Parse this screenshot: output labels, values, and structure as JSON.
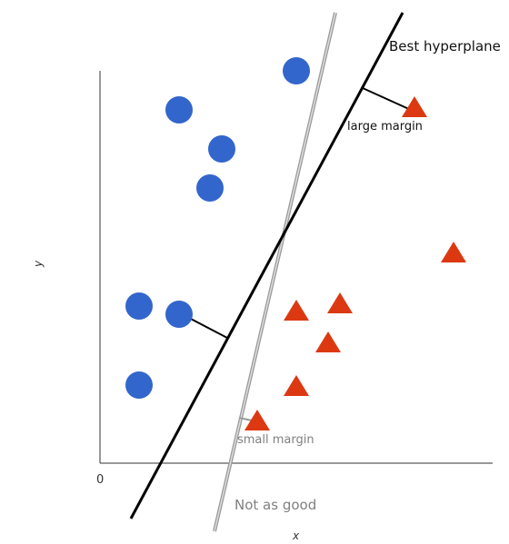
{
  "labels": {
    "best_hyperplane": "Best hyperplane",
    "large_margin": "large margin",
    "small_margin": "small margin",
    "not_as_good": "Not as good",
    "x_axis": "x",
    "y_axis": "y",
    "origin": "0"
  },
  "colors": {
    "circle": "#3366cc",
    "triangle": "#dc3912",
    "best_line": "#000000",
    "poor_line": "#aaaaaa",
    "axis": "#333333"
  },
  "shapes": {
    "class_a": "circle",
    "class_b": "triangle"
  }
}
